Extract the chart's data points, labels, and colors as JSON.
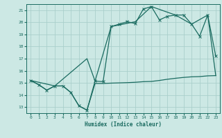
{
  "xlabel": "Humidex (Indice chaleur)",
  "bg_color": "#cce8e4",
  "grid_color": "#aacfcb",
  "line_color": "#1a6b60",
  "xlim": [
    -0.5,
    23.5
  ],
  "ylim": [
    12.5,
    21.5
  ],
  "yticks": [
    13,
    14,
    15,
    16,
    17,
    18,
    19,
    20,
    21
  ],
  "xticks": [
    0,
    1,
    2,
    3,
    4,
    5,
    6,
    7,
    8,
    9,
    10,
    11,
    12,
    13,
    14,
    15,
    16,
    17,
    18,
    19,
    20,
    21,
    22,
    23
  ],
  "line1_x": [
    0,
    1,
    2,
    3,
    4,
    5,
    6,
    7,
    8,
    9,
    10,
    11,
    12,
    13,
    14,
    15,
    16,
    17,
    18,
    19,
    20,
    21,
    22,
    23
  ],
  "line1_y": [
    15.2,
    14.85,
    14.4,
    14.75,
    14.75,
    14.2,
    13.1,
    12.75,
    15.15,
    15.1,
    19.65,
    19.85,
    20.05,
    19.9,
    21.1,
    21.3,
    20.2,
    20.5,
    20.6,
    20.6,
    19.85,
    18.85,
    20.6,
    17.2
  ],
  "line2_x": [
    0,
    1,
    2,
    3,
    4,
    5,
    6,
    7,
    8,
    9,
    10,
    11,
    12,
    13,
    14,
    15,
    16,
    17,
    18,
    19,
    20,
    21,
    22,
    23
  ],
  "line2_y": [
    15.2,
    14.85,
    14.4,
    14.75,
    14.75,
    14.2,
    13.1,
    12.75,
    14.95,
    14.95,
    14.98,
    15.0,
    15.02,
    15.05,
    15.1,
    15.12,
    15.2,
    15.3,
    15.38,
    15.45,
    15.5,
    15.52,
    15.58,
    15.6
  ],
  "line3_x": [
    0,
    3,
    7,
    8,
    10,
    13,
    15,
    18,
    20,
    22,
    23
  ],
  "line3_y": [
    15.2,
    14.75,
    17.0,
    15.15,
    19.65,
    20.05,
    21.3,
    20.6,
    19.85,
    20.6,
    15.6
  ]
}
